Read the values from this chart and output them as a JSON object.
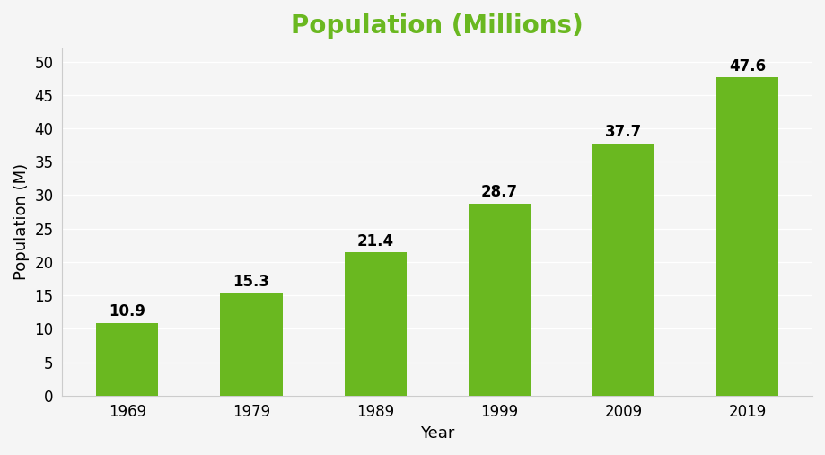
{
  "categories": [
    "1969",
    "1979",
    "1989",
    "1999",
    "2009",
    "2019"
  ],
  "values": [
    10.9,
    15.3,
    21.4,
    28.7,
    37.7,
    47.6
  ],
  "bar_color": "#6ab820",
  "title": "Population (Millions)",
  "title_color": "#6ab820",
  "title_fontsize": 20,
  "xlabel": "Year",
  "ylabel": "Population (M)",
  "xlabel_fontsize": 13,
  "ylabel_fontsize": 13,
  "tick_fontsize": 12,
  "label_fontsize": 12,
  "ylim": [
    0,
    52
  ],
  "yticks": [
    0,
    5,
    10,
    15,
    20,
    25,
    30,
    35,
    40,
    45,
    50
  ],
  "background_color": "#f5f5f5",
  "grid_color": "#ffffff",
  "bar_width": 0.5
}
